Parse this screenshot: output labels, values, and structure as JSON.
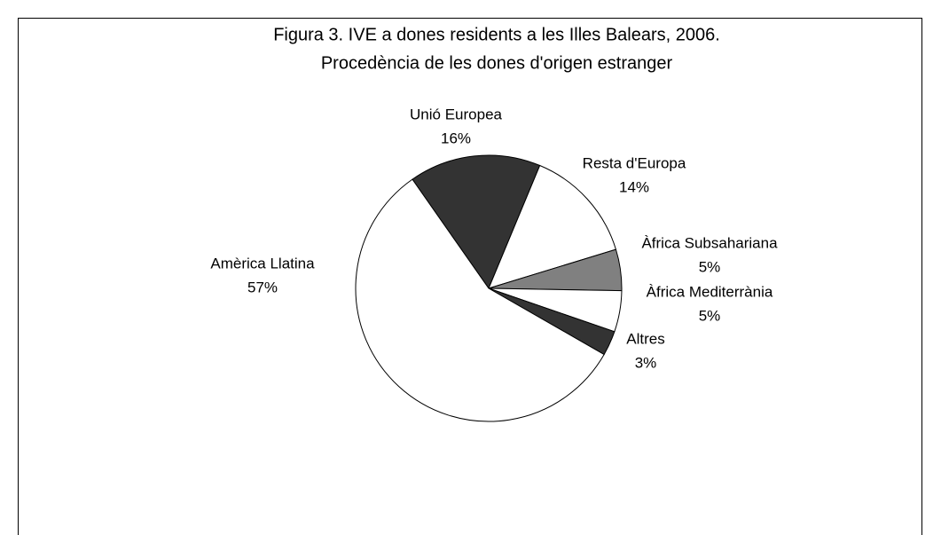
{
  "chart_data": {
    "type": "pie",
    "title": "Figura 3. IVE a dones residents a les Illes Balears, 2006.",
    "subtitle": "Procedència de les dones d'origen estranger",
    "categories": [
      "Unió Europea",
      "Resta d'Europa",
      "Àfrica Subsahariana",
      "Àfrica Mediterrània",
      "Altres",
      "Amèrica Llatina"
    ],
    "values": [
      16,
      14,
      5,
      5,
      3,
      57
    ],
    "value_labels": [
      "16%",
      "14%",
      "5%",
      "5%",
      "3%",
      "57%"
    ],
    "colors": [
      "#333333",
      "#ffffff",
      "#808080",
      "#ffffff",
      "#333333",
      "#ffffff"
    ]
  }
}
